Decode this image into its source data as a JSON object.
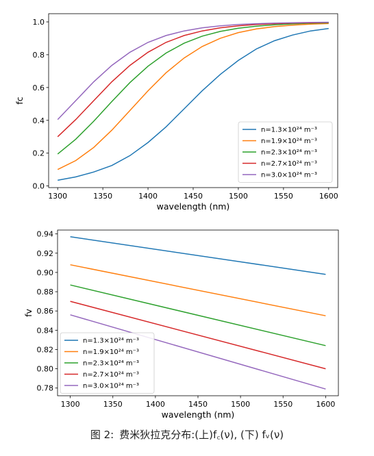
{
  "chart_data": [
    {
      "type": "line",
      "xlabel": "wavelength (nm)",
      "ylabel": "fc",
      "xlim": [
        1290,
        1610
      ],
      "ylim": [
        -0.01,
        1.05
      ],
      "xticks": [
        1300,
        1350,
        1400,
        1450,
        1500,
        1550,
        1600
      ],
      "yticks": [
        0.0,
        0.2,
        0.4,
        0.6,
        0.8,
        1.0
      ],
      "ytick_labels": [
        "0.0",
        "0.2",
        "0.4",
        "0.6",
        "0.8",
        "1.0"
      ],
      "grid": false,
      "legend_position": "lower-right",
      "x": [
        1300,
        1320,
        1340,
        1360,
        1380,
        1400,
        1420,
        1440,
        1460,
        1480,
        1500,
        1520,
        1540,
        1560,
        1580,
        1600
      ],
      "series": [
        {
          "name": "n=1.3×10²⁴ m⁻³",
          "color": "#1f77b4",
          "values": [
            0.035,
            0.055,
            0.085,
            0.125,
            0.185,
            0.265,
            0.36,
            0.47,
            0.58,
            0.68,
            0.765,
            0.835,
            0.885,
            0.92,
            0.945,
            0.96
          ]
        },
        {
          "name": "n=1.9×10²⁴ m⁻³",
          "color": "#ff7f0e",
          "values": [
            0.1,
            0.155,
            0.235,
            0.34,
            0.46,
            0.58,
            0.69,
            0.78,
            0.85,
            0.9,
            0.935,
            0.957,
            0.971,
            0.98,
            0.986,
            0.99
          ]
        },
        {
          "name": "n=2.3×10²⁴ m⁻³",
          "color": "#2ca02c",
          "values": [
            0.195,
            0.285,
            0.395,
            0.515,
            0.63,
            0.73,
            0.81,
            0.87,
            0.913,
            0.942,
            0.961,
            0.974,
            0.982,
            0.988,
            0.992,
            0.994
          ]
        },
        {
          "name": "n=2.7×10²⁴ m⁻³",
          "color": "#d62728",
          "values": [
            0.3,
            0.405,
            0.52,
            0.635,
            0.735,
            0.815,
            0.875,
            0.917,
            0.945,
            0.964,
            0.976,
            0.984,
            0.989,
            0.993,
            0.995,
            0.997
          ]
        },
        {
          "name": "n=3.0×10²⁴ m⁻³",
          "color": "#9467bd",
          "values": [
            0.405,
            0.52,
            0.635,
            0.735,
            0.815,
            0.875,
            0.917,
            0.945,
            0.964,
            0.976,
            0.984,
            0.989,
            0.993,
            0.995,
            0.997,
            0.998
          ]
        }
      ]
    },
    {
      "type": "line",
      "xlabel": "wavelength (nm)",
      "ylabel": "fv",
      "xlim": [
        1285,
        1615
      ],
      "ylim": [
        0.772,
        0.944
      ],
      "xticks": [
        1300,
        1350,
        1400,
        1450,
        1500,
        1550,
        1600
      ],
      "yticks": [
        0.78,
        0.8,
        0.82,
        0.84,
        0.86,
        0.88,
        0.9,
        0.92,
        0.94
      ],
      "ytick_labels": [
        "0.78",
        "0.80",
        "0.82",
        "0.84",
        "0.86",
        "0.88",
        "0.90",
        "0.92",
        "0.94"
      ],
      "grid": false,
      "legend_position": "lower-left",
      "x": [
        1300,
        1600
      ],
      "series": [
        {
          "name": "n=1.3×10²⁴ m⁻³",
          "color": "#1f77b4",
          "values": [
            0.937,
            0.898
          ]
        },
        {
          "name": "n=1.9×10²⁴ m⁻³",
          "color": "#ff7f0e",
          "values": [
            0.908,
            0.855
          ]
        },
        {
          "name": "n=2.3×10²⁴ m⁻³",
          "color": "#2ca02c",
          "values": [
            0.887,
            0.824
          ]
        },
        {
          "name": "n=2.7×10²⁴ m⁻³",
          "color": "#d62728",
          "values": [
            0.87,
            0.8
          ]
        },
        {
          "name": "n=3.0×10²⁴ m⁻³",
          "color": "#9467bd",
          "values": [
            0.856,
            0.779
          ]
        }
      ]
    }
  ],
  "caption": {
    "label": "图 2:",
    "text": "费米狄拉克分布:(上)f꜀(ν), (下) fᵥ(ν)"
  }
}
